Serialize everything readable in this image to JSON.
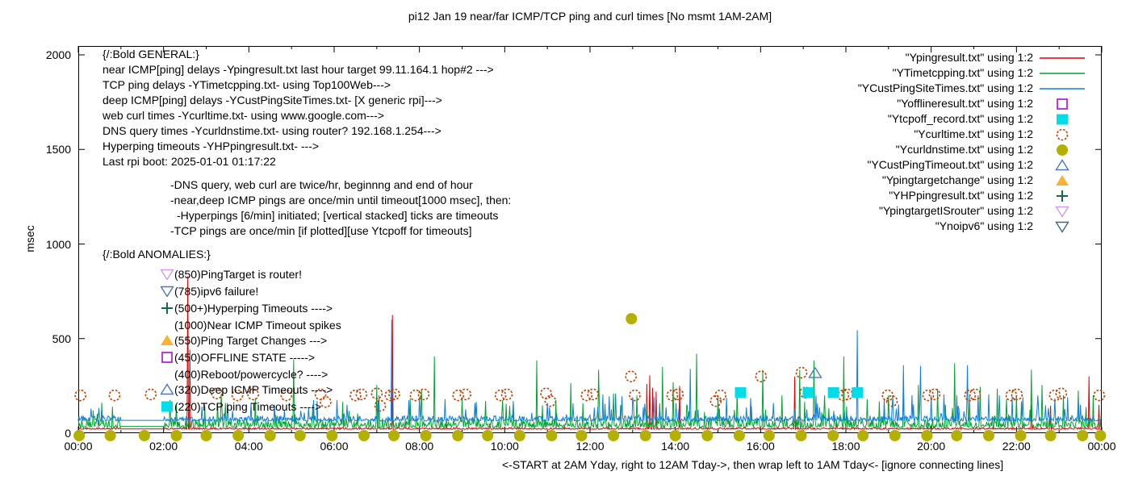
{
  "title": "pi12 Jan 19  near/far ICMP/TCP ping and curl times [No msmt 1AM-2AM]",
  "y_axis": {
    "label": "msec",
    "ticks": [
      0,
      500,
      1000,
      1500,
      2000
    ],
    "range": [
      0,
      2047
    ]
  },
  "x_axis": {
    "tick_labels": [
      "00:00",
      "02:00",
      "04:00",
      "06:00",
      "08:00",
      "10:00",
      "12:00",
      "14:00",
      "16:00",
      "18:00",
      "20:00",
      "22:00",
      "00:00"
    ],
    "tick_hours": [
      0,
      2,
      4,
      6,
      8,
      10,
      12,
      14,
      16,
      18,
      20,
      22,
      24
    ],
    "minor_every_hours": 1,
    "caption": "<-START at 2AM Yday, right to 12AM Tday->, then wrap left to 1AM Tday<- [ignore connecting lines]"
  },
  "annotations": {
    "general": [
      {
        "t": "{/:Bold GENERAL:}",
        "ind": 0
      },
      {
        "t": "near ICMP[ping] delays -Ypingresult.txt last hour target 99.11.164.1 hop#2 --->",
        "ind": 0
      },
      {
        "t": "TCP ping delays -YTimetcpping.txt- using Top100Web--->",
        "ind": 0
      },
      {
        "t": "deep ICMP[ping] delays -YCustPingSiteTimes.txt- [X generic rpi]--->",
        "ind": 0
      },
      {
        "t": "web curl times -Ycurltime.txt- using www.google.com--->",
        "ind": 0
      },
      {
        "t": "DNS query times -Ycurldnstime.txt- using router? 192.168.1.254--->",
        "ind": 0
      },
      {
        "t": "Hyperping timeouts -YHPpingresult.txt- --->",
        "ind": 0
      },
      {
        "t": "Last rpi boot: 2025-01-01 01:17:22",
        "ind": 0
      },
      {
        "t": "-DNS query, web curl are twice/hr, beginnng and end of hour",
        "ind": 1,
        "gap": true
      },
      {
        "t": "-near,deep ICMP pings are once/min until timeout[1000 msec], then:",
        "ind": 1
      },
      {
        "t": "-Hyperpings [6/min] initiated; [vertical stacked] ticks are timeouts",
        "ind": 2
      },
      {
        "t": "-TCP pings are once/min [if plotted][use Ytcpoff for timeouts]",
        "ind": 1
      }
    ],
    "anomalies_header": "{/:Bold ANOMALIES:}",
    "anomalies": [
      {
        "marker": "triangle-down-open",
        "color": "#cd9bf0",
        "text": "(850)PingTarget is router!"
      },
      {
        "marker": "triangle-down-open",
        "color": "#4b77be",
        "text": "(785)ipv6 failure!"
      },
      {
        "marker": "plus",
        "color": "#156b45",
        "text": "(500+)Hyperping Timeouts ---->"
      },
      {
        "marker": "none",
        "color": "",
        "text": "(1000)Near ICMP Timeout spikes"
      },
      {
        "marker": "triangle-filled",
        "color": "#f9b234",
        "text": "(550)Ping Target Changes --->"
      },
      {
        "marker": "square-open",
        "color": "#b426dd",
        "text": "(450)OFFLINE STATE ----->"
      },
      {
        "marker": "none",
        "color": "",
        "text": "(400)Reboot/powercycle? ---->"
      },
      {
        "marker": "triangle-open",
        "color": "#4b77be",
        "text": "(320)Deep ICMP Timeouts ---->"
      },
      {
        "marker": "square-filled",
        "color": "#00dce8",
        "text": "(220)TCP ping Timeouts ---->"
      }
    ]
  },
  "legend": [
    {
      "label": "\"Ypingresult.txt\" using 1:2",
      "sample": "line",
      "color": "#e60000"
    },
    {
      "label": "\"YTimetcpping.txt\" using 1:2",
      "sample": "line",
      "color": "#00a432"
    },
    {
      "label": "\"YCustPingSiteTimes.txt\" using 1:2",
      "sample": "line",
      "color": "#0f7fd8"
    },
    {
      "label": "\"Yofflineresult.txt\" using 1:2",
      "sample": "square-open",
      "color": "#b426dd"
    },
    {
      "label": "\"Ytcpoff_record.txt\" using 1:2",
      "sample": "square-filled",
      "color": "#00dce8"
    },
    {
      "label": "\"Ycurltime.txt\" using 1:2",
      "sample": "circle-open",
      "color": "#c04000"
    },
    {
      "label": "\"Ycurldnstime.txt\" using 1:2",
      "sample": "circle-filled",
      "color": "#b4b000"
    },
    {
      "label": "\"YCustPingTimeout.txt\" using 1:2",
      "sample": "triangle-open",
      "color": "#4b77be"
    },
    {
      "label": "\"Ypingtargetchange\" using 1:2",
      "sample": "triangle-filled",
      "color": "#f9b234"
    },
    {
      "label": "\"YHPpingresult.txt\" using 1:2",
      "sample": "plus",
      "color": "#156b45"
    },
    {
      "label": "\"YpingtargetISrouter\" using 1:2",
      "sample": "triangle-down-open",
      "color": "#cd9bf0"
    },
    {
      "label": "\"Ynoipv6\" using 1:2",
      "sample": "triangle-down-open",
      "color": "#3d6a80"
    }
  ],
  "chart_data": {
    "type": "line",
    "x_unit": "hours_of_day",
    "xlim": [
      0,
      24
    ],
    "ylim": [
      0,
      2047
    ],
    "ylabel": "msec",
    "grid": false,
    "no_msmt_window_hours": [
      1,
      2
    ],
    "seed": 20250119,
    "series": [
      {
        "name": "Ypingresult.txt",
        "style": "line",
        "color": "#e60000",
        "baseline": 22,
        "noise": 5,
        "spike_prob": 0.004,
        "spike_max": 50,
        "spikes": [
          [
            2.57,
            830
          ],
          [
            2.62,
            440
          ],
          [
            7.36,
            625
          ],
          [
            13.33,
            260
          ],
          [
            13.4,
            305
          ],
          [
            13.47,
            240
          ],
          [
            13.55,
            220
          ],
          [
            14.1,
            250
          ],
          [
            16.8,
            300
          ],
          [
            22.35,
            150
          ],
          [
            22.8,
            145
          ],
          [
            23.7,
            300
          ],
          [
            23.93,
            150
          ]
        ]
      },
      {
        "name": "YTimetcpping.txt",
        "style": "line",
        "color": "#00a432",
        "baseline": 36,
        "noise": 26,
        "spike_prob": 0.06,
        "spike_max": 130,
        "spikes": [
          [
            0.35,
            120
          ],
          [
            0.8,
            140
          ],
          [
            2.15,
            175
          ],
          [
            2.3,
            150
          ],
          [
            3.35,
            205
          ],
          [
            3.45,
            160
          ],
          [
            4.15,
            185
          ],
          [
            5.05,
            390
          ],
          [
            5.5,
            150
          ],
          [
            6.2,
            165
          ],
          [
            7.0,
            255
          ],
          [
            7.05,
            200
          ],
          [
            8.05,
            230
          ],
          [
            8.35,
            405
          ],
          [
            9.0,
            185
          ],
          [
            9.55,
            170
          ],
          [
            9.95,
            175
          ],
          [
            10.75,
            385
          ],
          [
            11.2,
            175
          ],
          [
            11.55,
            265
          ],
          [
            12.2,
            335
          ],
          [
            12.55,
            210
          ],
          [
            13.1,
            200
          ],
          [
            13.7,
            350
          ],
          [
            13.95,
            270
          ],
          [
            14.5,
            420
          ],
          [
            15.0,
            200
          ],
          [
            15.45,
            235
          ],
          [
            16.05,
            335
          ],
          [
            16.5,
            200
          ],
          [
            16.92,
            335
          ],
          [
            17.25,
            385
          ],
          [
            17.5,
            200
          ],
          [
            17.95,
            405
          ],
          [
            18.5,
            180
          ],
          [
            19.0,
            200
          ],
          [
            19.35,
            245
          ],
          [
            19.7,
            255
          ],
          [
            20.15,
            235
          ],
          [
            20.55,
            370
          ],
          [
            20.9,
            200
          ],
          [
            21.15,
            245
          ],
          [
            21.55,
            235
          ],
          [
            22.0,
            200
          ],
          [
            22.35,
            335
          ],
          [
            22.6,
            255
          ],
          [
            23.1,
            200
          ],
          [
            23.45,
            225
          ],
          [
            23.8,
            200
          ]
        ]
      },
      {
        "name": "YCustPingSiteTimes.txt",
        "style": "line",
        "color": "#0f7fd8",
        "baseline": 68,
        "noise": 15,
        "spike_prob": 0.05,
        "spike_max": 100,
        "spikes": [
          [
            0.3,
            130
          ],
          [
            0.55,
            120
          ],
          [
            2.9,
            140
          ],
          [
            3.5,
            160
          ],
          [
            4.6,
            150
          ],
          [
            5.6,
            170
          ],
          [
            6.3,
            150
          ],
          [
            7.35,
            600
          ],
          [
            8.0,
            190
          ],
          [
            8.6,
            180
          ],
          [
            9.3,
            160
          ],
          [
            10.2,
            170
          ],
          [
            11.0,
            160
          ],
          [
            12.3,
            205
          ],
          [
            12.45,
            195
          ],
          [
            12.6,
            210
          ],
          [
            12.75,
            195
          ],
          [
            13.0,
            190
          ],
          [
            13.5,
            190
          ],
          [
            14.35,
            340
          ],
          [
            15.77,
            185
          ],
          [
            16.3,
            160
          ],
          [
            17.3,
            200
          ],
          [
            18.26,
            545
          ],
          [
            18.9,
            180
          ],
          [
            19.1,
            200
          ],
          [
            19.35,
            360
          ],
          [
            19.55,
            200
          ],
          [
            19.75,
            355
          ],
          [
            20.0,
            200
          ],
          [
            20.3,
            205
          ],
          [
            20.6,
            200
          ],
          [
            20.85,
            360
          ],
          [
            21.1,
            200
          ],
          [
            21.35,
            205
          ],
          [
            21.6,
            200
          ],
          [
            21.9,
            195
          ],
          [
            22.15,
            190
          ],
          [
            22.5,
            200
          ],
          [
            22.9,
            185
          ],
          [
            23.2,
            190
          ],
          [
            23.5,
            150
          ]
        ]
      },
      {
        "name": "Ycurltime.txt",
        "style": "scatter",
        "marker": "circle-open",
        "color": "#c04000",
        "points": [
          [
            0.05,
            200
          ],
          [
            0.85,
            200
          ],
          [
            1.7,
            205
          ],
          [
            3.25,
            210
          ],
          [
            3.73,
            200
          ],
          [
            4.1,
            205
          ],
          [
            4.88,
            200
          ],
          [
            5.68,
            205
          ],
          [
            5.8,
            165
          ],
          [
            6.5,
            200
          ],
          [
            6.64,
            205
          ],
          [
            7.0,
            210
          ],
          [
            7.08,
            145
          ],
          [
            7.32,
            200
          ],
          [
            7.41,
            205
          ],
          [
            7.91,
            200
          ],
          [
            8.1,
            205
          ],
          [
            8.91,
            200
          ],
          [
            9.08,
            205
          ],
          [
            9.9,
            200
          ],
          [
            10.05,
            205
          ],
          [
            10.97,
            210
          ],
          [
            11.07,
            170
          ],
          [
            11.92,
            200
          ],
          [
            12.07,
            205
          ],
          [
            12.96,
            300
          ],
          [
            13.05,
            200
          ],
          [
            13.93,
            200
          ],
          [
            14.06,
            205
          ],
          [
            14.95,
            170
          ],
          [
            15.06,
            200
          ],
          [
            16.01,
            300
          ],
          [
            16.96,
            320
          ],
          [
            17.05,
            215
          ],
          [
            17.94,
            200
          ],
          [
            18.03,
            205
          ],
          [
            18.98,
            200
          ],
          [
            19.08,
            170
          ],
          [
            19.93,
            200
          ],
          [
            20.08,
            205
          ],
          [
            20.91,
            200
          ],
          [
            21.03,
            205
          ],
          [
            21.88,
            200
          ],
          [
            22.01,
            205
          ],
          [
            22.9,
            200
          ],
          [
            23.05,
            210
          ],
          [
            23.94,
            200
          ]
        ]
      },
      {
        "name": "Ycurldnstime.txt",
        "style": "scatter",
        "marker": "circle-filled",
        "color": "#b4b000",
        "points": [
          [
            0.02,
            0
          ],
          [
            0.75,
            0
          ],
          [
            1.55,
            0
          ],
          [
            2.3,
            0
          ],
          [
            3.0,
            0
          ],
          [
            3.75,
            0
          ],
          [
            4.5,
            0
          ],
          [
            5.2,
            0
          ],
          [
            5.95,
            0
          ],
          [
            6.7,
            0
          ],
          [
            7.4,
            0
          ],
          [
            8.15,
            0
          ],
          [
            8.9,
            0
          ],
          [
            9.6,
            0
          ],
          [
            10.35,
            0
          ],
          [
            11.1,
            0
          ],
          [
            11.8,
            0
          ],
          [
            12.55,
            0
          ],
          [
            12.97,
            605
          ],
          [
            13.3,
            0
          ],
          [
            14.0,
            0
          ],
          [
            14.75,
            0
          ],
          [
            15.5,
            0
          ],
          [
            16.2,
            0
          ],
          [
            16.95,
            0
          ],
          [
            17.7,
            0
          ],
          [
            18.4,
            0
          ],
          [
            19.15,
            0
          ],
          [
            19.9,
            0
          ],
          [
            20.6,
            0
          ],
          [
            21.35,
            0
          ],
          [
            22.1,
            0
          ],
          [
            22.8,
            0
          ],
          [
            23.55,
            0
          ],
          [
            23.97,
            0
          ]
        ]
      },
      {
        "name": "Ytcpoff_record.txt",
        "style": "scatter",
        "marker": "square-filled",
        "color": "#00dce8",
        "points": [
          [
            15.53,
            215
          ],
          [
            17.12,
            215
          ],
          [
            17.71,
            215
          ],
          [
            18.27,
            215
          ]
        ]
      },
      {
        "name": "YCustPingTimeout.txt",
        "style": "scatter",
        "marker": "triangle-open",
        "color": "#4b77be",
        "points": [
          [
            17.28,
            318
          ]
        ]
      }
    ]
  }
}
